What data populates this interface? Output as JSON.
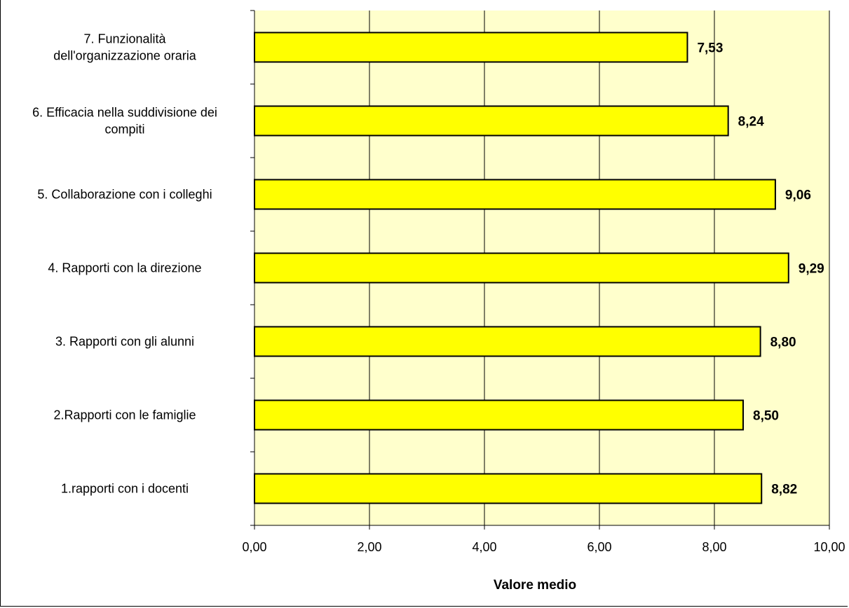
{
  "chart_data": {
    "type": "bar",
    "orientation": "horizontal",
    "categories": [
      "7. Funzionalità\ndell'organizzazione oraria",
      "6. Efficacia nella suddivisione dei\ncompiti",
      "5. Collaborazione con i colleghi",
      "4. Rapporti con la direzione",
      "3. Rapporti con gli alunni",
      "2.Rapporti con le famiglie",
      "1.rapporti con i docenti"
    ],
    "values": [
      7.53,
      8.24,
      9.06,
      9.29,
      8.8,
      8.5,
      8.82
    ],
    "value_labels": [
      "7,53",
      "8,24",
      "9,06",
      "9,29",
      "8,80",
      "8,50",
      "8,82"
    ],
    "xlabel": "Valore medio",
    "ylabel": "",
    "xlim": [
      0,
      10
    ],
    "x_ticks": [
      0,
      2,
      4,
      6,
      8,
      10
    ],
    "x_tick_labels": [
      "0,00",
      "2,00",
      "4,00",
      "6,00",
      "8,00",
      "10,00"
    ],
    "grid": "vertical",
    "legend": "none",
    "colors": {
      "bar_fill": "#ffff00",
      "bar_stroke": "#000000",
      "plot_background": "#ffffcc",
      "gridline": "#000000"
    }
  }
}
